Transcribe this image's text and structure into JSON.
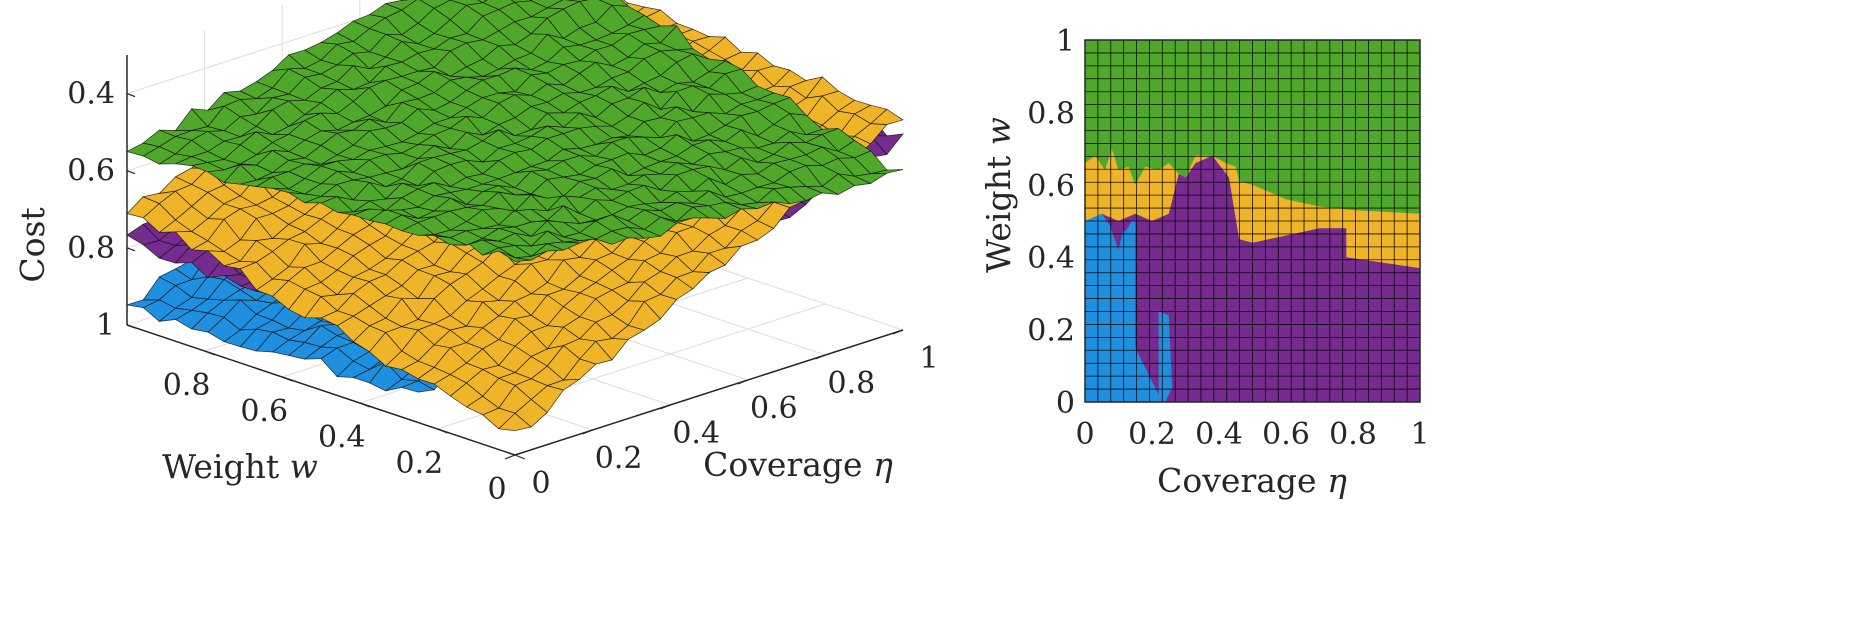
{
  "colors": {
    "green": "#4fa82a",
    "yellow": "#f0b429",
    "purple": "#762c8f",
    "blue": "#1f8fe0",
    "grid": "#000000",
    "axis": "#262626"
  },
  "chart_data": [
    {
      "type": "surface",
      "zlabel": "Cost",
      "xlabel": "Weight",
      "xlabel_symbol": "w",
      "ylabel": "Coverage",
      "ylabel_symbol": "η",
      "xlim": [
        0,
        1
      ],
      "ylim": [
        0,
        1
      ],
      "zlim": [
        0.3,
        1
      ],
      "z_direction": "reversed",
      "x_ticks": [
        "0",
        "0.2",
        "0.4",
        "0.6",
        "0.8"
      ],
      "x_tick_values": [
        0,
        0.2,
        0.4,
        0.6,
        0.8
      ],
      "y_ticks": [
        "0",
        "0.2",
        "0.4",
        "0.6",
        "0.8",
        "1"
      ],
      "y_tick_values": [
        0,
        0.2,
        0.4,
        0.6,
        0.8,
        1
      ],
      "z_ticks": [
        "0.4",
        "0.6",
        "0.8",
        "1"
      ],
      "z_tick_values": [
        0.4,
        0.6,
        0.8,
        1
      ],
      "grid": true,
      "series": [
        {
          "color": "green",
          "corner_costs": {
            "w0_eta0": 0.5,
            "w1_eta0": 0.55,
            "w0_eta1": 0.6,
            "w1_eta1": 0.3
          }
        },
        {
          "color": "yellow",
          "corner_costs": {
            "w0_eta0": 0.95,
            "w1_eta0": 0.7,
            "w0_eta1": 0.45,
            "w1_eta1": 0.35
          }
        },
        {
          "color": "purple",
          "corner_costs": {
            "w0_eta0": 0.85,
            "w1_eta0": 0.78,
            "w0_eta1": 0.5,
            "w1_eta1": 0.38
          }
        },
        {
          "color": "blue",
          "corner_costs": {
            "w0_eta0": 0.92,
            "w1_eta0": 0.95,
            "w0_eta1": 0.6,
            "w1_eta1": 0.5
          }
        }
      ]
    },
    {
      "type": "heatmap",
      "xlabel": "Coverage",
      "xlabel_symbol": "η",
      "ylabel": "Weight",
      "ylabel_symbol": "w",
      "xlim": [
        0,
        1
      ],
      "ylim": [
        0,
        1
      ],
      "x_ticks": [
        "0",
        "0.2",
        "0.4",
        "0.6",
        "0.8",
        "1"
      ],
      "x_tick_values": [
        0,
        0.2,
        0.4,
        0.6,
        0.8,
        1
      ],
      "y_ticks": [
        "0",
        "0.2",
        "0.4",
        "0.6",
        "0.8",
        "1"
      ],
      "y_tick_values": [
        0,
        0.2,
        0.4,
        0.6,
        0.8,
        1
      ],
      "grid": true,
      "regions": [
        {
          "color": "green",
          "eta": [
            0,
            1
          ],
          "w_lower_boundary": [
            [
              0,
              0.66
            ],
            [
              0.03,
              0.68
            ],
            [
              0.06,
              0.64
            ],
            [
              0.08,
              0.7
            ],
            [
              0.1,
              0.64
            ],
            [
              0.13,
              0.65
            ],
            [
              0.15,
              0.6
            ],
            [
              0.18,
              0.65
            ],
            [
              0.22,
              0.64
            ],
            [
              0.25,
              0.66
            ],
            [
              0.28,
              0.63
            ],
            [
              0.3,
              0.62
            ],
            [
              0.33,
              0.68
            ],
            [
              0.38,
              0.68
            ],
            [
              0.42,
              0.66
            ],
            [
              0.45,
              0.65
            ],
            [
              0.46,
              0.61
            ],
            [
              0.5,
              0.6
            ],
            [
              0.55,
              0.58
            ],
            [
              0.6,
              0.56
            ],
            [
              0.7,
              0.54
            ],
            [
              0.8,
              0.53
            ],
            [
              1,
              0.52
            ]
          ]
        },
        {
          "color": "yellow",
          "eta": [
            0,
            1
          ],
          "w_lower_boundary": [
            [
              0,
              0.5
            ],
            [
              0.05,
              0.52
            ],
            [
              0.1,
              0.5
            ],
            [
              0.15,
              0.52
            ],
            [
              0.2,
              0.5
            ],
            [
              0.25,
              0.52
            ],
            [
              0.28,
              0.63
            ],
            [
              0.3,
              0.62
            ],
            [
              0.33,
              0.66
            ],
            [
              0.38,
              0.68
            ],
            [
              0.43,
              0.62
            ],
            [
              0.46,
              0.45
            ],
            [
              0.5,
              0.44
            ],
            [
              0.6,
              0.46
            ],
            [
              0.7,
              0.48
            ],
            [
              0.78,
              0.48
            ],
            [
              0.78,
              0.4
            ],
            [
              1,
              0.37
            ]
          ]
        },
        {
          "color": "purple",
          "eta": [
            0,
            1
          ],
          "w_lower_boundary": [
            [
              0,
              0
            ],
            [
              1,
              0
            ]
          ]
        },
        {
          "color": "blue",
          "eta": [
            0,
            0.28
          ],
          "w_upper_boundary": [
            [
              0,
              0.5
            ],
            [
              0.05,
              0.52
            ],
            [
              0.08,
              0.48
            ],
            [
              0.1,
              0.5
            ],
            [
              0.12,
              0.47
            ],
            [
              0.14,
              0.5
            ],
            [
              0.15,
              0.5
            ]
          ]
        }
      ]
    }
  ]
}
